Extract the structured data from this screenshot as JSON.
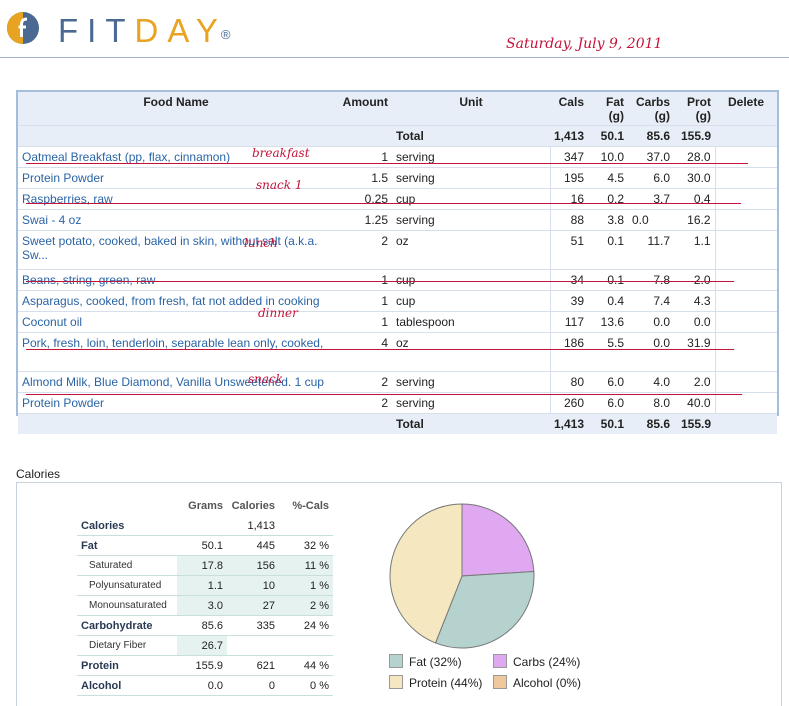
{
  "brand": {
    "fit": "FIT",
    "day": "DAY",
    "reg": "®"
  },
  "date_note": "Saturday, July 9, 2011",
  "colors": {
    "brand_blue": "#4a6a93",
    "brand_orange": "#e9a322",
    "ink_red": "#c4133a",
    "link_blue": "#2a64a6"
  },
  "food_table": {
    "headers": {
      "name": "Food Name",
      "amount": "Amount",
      "unit": "Unit",
      "cals": "Cals",
      "fat": "Fat\n(g)",
      "carbs": "Carbs\n(g)",
      "prot": "Prot\n(g)",
      "delete": "Delete"
    },
    "total": {
      "label": "Total",
      "cals": "1,413",
      "fat": "50.1",
      "carbs": "85.6",
      "prot": "155.9"
    },
    "rows": [
      {
        "name": "Oatmeal Breakfast (pp, flax, cinnamon)",
        "amount": "1",
        "unit": "serving",
        "cals": "347",
        "fat": "10.0",
        "carbs": "37.0",
        "prot": "28.0"
      },
      {
        "name": "Protein Powder",
        "amount": "1.5",
        "unit": "serving",
        "cals": "195",
        "fat": "4.5",
        "carbs": "6.0",
        "prot": "30.0"
      },
      {
        "name": "Raspberries, raw",
        "amount": "0.25",
        "unit": "cup",
        "cals": "16",
        "fat": "0.2",
        "carbs": "3.7",
        "prot": "0.4"
      },
      {
        "name": "Swai - 4 oz",
        "amount": "1.25",
        "unit": "serving",
        "cals": "88",
        "fat": "3.8",
        "carbs": "0.0",
        "prot": "16.2"
      },
      {
        "name": "Sweet potato, cooked, baked in skin, without salt (a.k.a. Sw...",
        "amount": "2",
        "unit": "oz",
        "cals": "51",
        "fat": "0.1",
        "carbs": "11.7",
        "prot": "1.1"
      },
      {
        "name": "Beans, string, green, raw",
        "amount": "1",
        "unit": "cup",
        "cals": "34",
        "fat": "0.1",
        "carbs": "7.8",
        "prot": "2.0"
      },
      {
        "name": "Asparagus, cooked, from fresh, fat not added in cooking",
        "amount": "1",
        "unit": "cup",
        "cals": "39",
        "fat": "0.4",
        "carbs": "7.4",
        "prot": "4.3"
      },
      {
        "name": "Coconut oil",
        "amount": "1",
        "unit": "tablespoon",
        "cals": "117",
        "fat": "13.6",
        "carbs": "0.0",
        "prot": "0.0"
      },
      {
        "name": "Pork, fresh, loin, tenderloin, separable lean only, cooked,",
        "amount": "4",
        "unit": "oz",
        "cals": "186",
        "fat": "5.5",
        "carbs": "0.0",
        "prot": "31.9"
      },
      {
        "name": "Almond Milk, Blue Diamond, Vanilla Unsweetened. 1 cup",
        "amount": "2",
        "unit": "serving",
        "cals": "80",
        "fat": "6.0",
        "carbs": "4.0",
        "prot": "2.0"
      },
      {
        "name": "Protein Powder",
        "amount": "2",
        "unit": "serving",
        "cals": "260",
        "fat": "6.0",
        "carbs": "8.0",
        "prot": "40.0"
      }
    ]
  },
  "meal_notes": {
    "breakfast": "breakfast",
    "snack1": "snack 1",
    "lunch": "lunch",
    "dinner": "dinner",
    "snack": "snack"
  },
  "calories_section": {
    "title": "Calories",
    "headers": {
      "grams": "Grams",
      "calories": "Calories",
      "pct": "%-Cals"
    },
    "rows": [
      {
        "label": "Calories",
        "grams": "",
        "calories": "1,413",
        "pct": ""
      },
      {
        "label": "Fat",
        "grams": "50.1",
        "calories": "445",
        "pct": "32 %"
      },
      {
        "label": "Saturated",
        "grams": "17.8",
        "calories": "156",
        "pct": "11 %"
      },
      {
        "label": "Polyunsaturated",
        "grams": "1.1",
        "calories": "10",
        "pct": "1 %"
      },
      {
        "label": "Monounsaturated",
        "grams": "3.0",
        "calories": "27",
        "pct": "2 %"
      },
      {
        "label": "Carbohydrate",
        "grams": "85.6",
        "calories": "335",
        "pct": "24 %"
      },
      {
        "label": "Dietary Fiber",
        "grams": "26.7",
        "calories": "",
        "pct": ""
      },
      {
        "label": "Protein",
        "grams": "155.9",
        "calories": "621",
        "pct": "44 %"
      },
      {
        "label": "Alcohol",
        "grams": "0.0",
        "calories": "0",
        "pct": "0 %"
      }
    ]
  },
  "chart_data": {
    "type": "pie",
    "slices": [
      {
        "label": "Fat (32%)",
        "value": 32,
        "color": "#b5d2cf"
      },
      {
        "label": "Carbs (24%)",
        "value": 24,
        "color": "#dfa8f1"
      },
      {
        "label": "Protein (44%)",
        "value": 44,
        "color": "#f5e8c0"
      },
      {
        "label": "Alcohol (0%)",
        "value": 0,
        "color": "#f0c89e"
      }
    ]
  }
}
